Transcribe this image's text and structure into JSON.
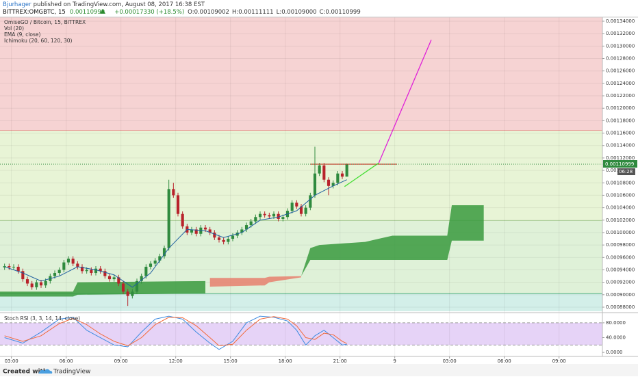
{
  "header": {
    "author": "Bjurhager",
    "published": "published on TradingView.com, August 08, 2017 16:38 EST",
    "symbol": "BITTREX:OMGBTC, 15",
    "last": "0.00110999",
    "change": "+0.00017330 (+18.5%)",
    "quote": [
      "O:0.00109002",
      "H:0.00111111",
      "L:0.00109000",
      "C:0.00110999"
    ]
  },
  "footer": {
    "created": "Created with",
    "brand": "TradingView"
  },
  "chart_data": {
    "type": "candlestick",
    "title": "OmiseGO / Bitcoin, 15, BITTREX",
    "indicators": [
      "Vol (20)",
      "EMA (9, close)",
      "Ichimoku (20, 60, 120, 30)"
    ],
    "up_color": "#2f8a3e",
    "down_color": "#b8232b",
    "x": [
      1,
      2,
      3,
      4,
      5,
      6,
      7,
      8,
      9,
      10,
      11,
      12,
      13,
      14,
      15,
      16,
      17,
      18,
      19,
      20,
      21,
      22,
      23,
      24,
      25,
      26,
      27,
      28,
      29,
      30,
      31,
      32,
      33,
      34,
      35,
      36,
      37,
      38,
      39,
      40,
      41,
      42,
      43,
      44,
      45,
      46,
      47,
      48,
      49,
      50,
      51,
      52,
      53,
      54,
      55,
      56,
      57,
      58,
      59,
      60,
      61,
      62,
      63,
      64,
      65,
      66,
      67,
      68,
      69,
      70,
      71,
      72,
      73,
      74,
      75,
      76
    ],
    "open": [
      0.000944,
      0.000946,
      0.000944,
      0.000945,
      0.000938,
      0.000925,
      0.000918,
      0.000912,
      0.00092,
      0.000915,
      0.000922,
      0.00093,
      0.000935,
      0.00094,
      0.000952,
      0.000958,
      0.00095,
      0.000945,
      0.000938,
      0.00094,
      0.000935,
      0.000942,
      0.000938,
      0.00093,
      0.000925,
      0.000928,
      0.000918,
      0.000905,
      0.000898,
      0.000905,
      0.000922,
      0.00093,
      0.000945,
      0.00095,
      0.000955,
      0.000962,
      0.000975,
      0.00107,
      0.00106,
      0.00103,
      0.00101,
      0.001,
      0.001005,
      0.000998,
      0.001008,
      0.001005,
      0.001,
      0.000992,
      0.000988,
      0.000985,
      0.00099,
      0.000995,
      0.001,
      0.001005,
      0.001012,
      0.001018,
      0.001025,
      0.00103,
      0.001028,
      0.001026,
      0.00103,
      0.001022,
      0.001025,
      0.001035,
      0.001048,
      0.001042,
      0.00103,
      0.00104,
      0.00106,
      0.001095,
      0.001108,
      0.001085,
      0.001075,
      0.00108,
      0.001095,
      0.00109002
    ],
    "high": [
      0.00095,
      0.00095,
      0.000949,
      0.000949,
      0.000942,
      0.000929,
      0.000922,
      0.000924,
      0.000924,
      0.000926,
      0.000934,
      0.000939,
      0.000944,
      0.000956,
      0.000962,
      0.000962,
      0.000954,
      0.000949,
      0.000944,
      0.000944,
      0.000946,
      0.000946,
      0.000942,
      0.000934,
      0.000932,
      0.000932,
      0.000922,
      0.000909,
      0.000909,
      0.000926,
      0.000934,
      0.000949,
      0.000954,
      0.000959,
      0.000966,
      0.000979,
      0.001085,
      0.00108,
      0.001064,
      0.001034,
      0.001014,
      0.001009,
      0.001009,
      0.001012,
      0.001012,
      0.001009,
      0.001004,
      0.000996,
      0.000992,
      0.000994,
      0.000999,
      0.001004,
      0.001009,
      0.001016,
      0.001022,
      0.001029,
      0.001034,
      0.001034,
      0.001032,
      0.001034,
      0.001034,
      0.001029,
      0.001039,
      0.001052,
      0.001052,
      0.001046,
      0.001044,
      0.001064,
      0.001138,
      0.001112,
      0.001112,
      0.001089,
      0.001084,
      0.001099,
      0.001099,
      0.00111111
    ],
    "low": [
      0.00094,
      0.00094,
      0.00094,
      0.000934,
      0.000921,
      0.000914,
      0.000908,
      0.000908,
      0.000911,
      0.000911,
      0.000918,
      0.000926,
      0.000931,
      0.000936,
      0.000948,
      0.000946,
      0.000941,
      0.000934,
      0.000934,
      0.000931,
      0.000931,
      0.000934,
      0.000926,
      0.000921,
      0.000921,
      0.000914,
      0.000901,
      0.000882,
      0.000894,
      0.000901,
      0.000918,
      0.000926,
      0.000941,
      0.000946,
      0.000951,
      0.000958,
      0.000971,
      0.001056,
      0.001026,
      0.001006,
      0.000996,
      0.000996,
      0.000994,
      0.000994,
      0.001001,
      0.000996,
      0.000988,
      0.000984,
      0.000981,
      0.000981,
      0.000986,
      0.000991,
      0.000996,
      0.001001,
      0.001008,
      0.001014,
      0.001021,
      0.001024,
      0.001022,
      0.001022,
      0.001018,
      0.001018,
      0.001021,
      0.001031,
      0.001038,
      0.001026,
      0.001026,
      0.001036,
      0.001056,
      0.001091,
      0.001081,
      0.00106,
      0.001071,
      0.001076,
      0.001086,
      0.00109
    ],
    "close": [
      0.000946,
      0.000944,
      0.000945,
      0.000938,
      0.000925,
      0.000918,
      0.000912,
      0.00092,
      0.000915,
      0.000922,
      0.00093,
      0.000935,
      0.00094,
      0.000952,
      0.000958,
      0.00095,
      0.000945,
      0.000938,
      0.00094,
      0.000935,
      0.000942,
      0.000938,
      0.00093,
      0.000925,
      0.000928,
      0.000918,
      0.000905,
      0.000898,
      0.000905,
      0.000922,
      0.00093,
      0.000945,
      0.00095,
      0.000955,
      0.000962,
      0.000975,
      0.00107,
      0.00106,
      0.00103,
      0.00101,
      0.001,
      0.001005,
      0.000998,
      0.001008,
      0.001005,
      0.001,
      0.000992,
      0.000988,
      0.000985,
      0.00099,
      0.000995,
      0.001,
      0.001005,
      0.001012,
      0.001018,
      0.001025,
      0.00103,
      0.001028,
      0.001026,
      0.00103,
      0.001022,
      0.001025,
      0.001035,
      0.001048,
      0.001042,
      0.00103,
      0.00104,
      0.00106,
      0.001095,
      0.001108,
      0.001085,
      0.001075,
      0.00108,
      0.001095,
      0.00109,
      0.00110999
    ],
    "countdown": "06:28",
    "ema": {
      "color": "#1f5fa0",
      "x": [
        1,
        5,
        9,
        13,
        17,
        21,
        25,
        29,
        33,
        37,
        41,
        45,
        49,
        53,
        57,
        61,
        65,
        69,
        73,
        76
      ],
      "values": [
        0.000945,
        0.000935,
        0.000922,
        0.00093,
        0.000945,
        0.00094,
        0.000932,
        0.000912,
        0.000935,
        0.000975,
        0.001005,
        0.001003,
        0.000992,
        0.001,
        0.00102,
        0.001025,
        0.001035,
        0.00106,
        0.001075,
        0.001085
      ]
    },
    "clouds": [
      {
        "color": "#3a9a3e",
        "x": [
          0,
          16,
          17,
          45
        ],
        "upper": [
          0.000905,
          0.000905,
          0.00092,
          0.000922
        ],
        "lower": [
          0.000897,
          0.000897,
          0.0009,
          0.000902
        ]
      },
      {
        "color": "#e8806e",
        "x": [
          46,
          58,
          59,
          66
        ],
        "upper": [
          0.000927,
          0.000927,
          0.000929,
          0.00093
        ],
        "lower": [
          0.000913,
          0.000915,
          0.00092,
          0.000928
        ]
      },
      {
        "color": "#3a9a3e",
        "x": [
          66,
          68,
          70,
          80,
          83,
          86,
          98,
          99,
          106
        ],
        "upper": [
          0.00093,
          0.000975,
          0.00098,
          0.000985,
          0.00099,
          0.000995,
          0.000995,
          0.001044,
          0.001044
        ],
        "lower": [
          0.00093,
          0.000956,
          0.000956,
          0.000956,
          0.000956,
          0.000956,
          0.000956,
          0.000987,
          0.000987
        ]
      }
    ],
    "zones": [
      {
        "from": 0.001164,
        "color": "#f6d3d3",
        "line": "#e06666"
      },
      {
        "from": 0.001019,
        "color": "#e8f4d6",
        "line": "#6aa84f"
      },
      {
        "from": 0.000902,
        "color": "#dff1d8",
        "line": "#4caf7a"
      }
    ],
    "base_zone_color": "#d3efe9",
    "drawings": [
      {
        "color": "#e0312b",
        "x": [
          68,
          87
        ],
        "y": [
          0.00111,
          0.00111
        ]
      },
      {
        "color": "#44dd33",
        "x": [
          75.5,
          83
        ],
        "y": [
          0.001074,
          0.001112
        ]
      },
      {
        "color": "#e020d8",
        "x": [
          83,
          94.5
        ],
        "y": [
          0.001112,
          0.00131
        ]
      }
    ],
    "xlim": [
      0,
      132
    ],
    "ylim": [
      0.0008734,
      0.0013466
    ],
    "yticks": [
      {
        "value": 0.00088,
        "label": "0.00088000"
      },
      {
        "value": 0.0009,
        "label": "0.00090000"
      },
      {
        "value": 0.00092,
        "label": "0.00092000"
      },
      {
        "value": 0.00094,
        "label": "0.00094000"
      },
      {
        "value": 0.00096,
        "label": "0.00096000"
      },
      {
        "value": 0.00098,
        "label": "0.00098000"
      },
      {
        "value": 0.001,
        "label": "0.00100000"
      },
      {
        "value": 0.00102,
        "label": "0.00102000"
      },
      {
        "value": 0.00104,
        "label": "0.00104000"
      },
      {
        "value": 0.00106,
        "label": "0.00106000"
      },
      {
        "value": 0.00108,
        "label": "0.00108000"
      },
      {
        "value": 0.0011,
        "label": "0.00110000"
      },
      {
        "value": 0.00112,
        "label": "0.00112000"
      },
      {
        "value": 0.00114,
        "label": "0.00114000"
      },
      {
        "value": 0.00116,
        "label": "0.00116000"
      },
      {
        "value": 0.00118,
        "label": "0.00118000"
      },
      {
        "value": 0.0012,
        "label": "0.00120000"
      },
      {
        "value": 0.00122,
        "label": "0.00122000"
      },
      {
        "value": 0.00124,
        "label": "0.00124000"
      },
      {
        "value": 0.00126,
        "label": "0.00126000"
      },
      {
        "value": 0.00128,
        "label": "0.00128000"
      },
      {
        "value": 0.0013,
        "label": "0.00130000"
      },
      {
        "value": 0.00132,
        "label": "0.00132000"
      },
      {
        "value": 0.00134,
        "label": "0.00134000"
      }
    ],
    "xticks": [
      {
        "value": 2.5,
        "label": "03:00"
      },
      {
        "value": 14.5,
        "label": "06:00"
      },
      {
        "value": 26.5,
        "label": "09:00"
      },
      {
        "value": 38.5,
        "label": "12:00"
      },
      {
        "value": 50.5,
        "label": "15:00"
      },
      {
        "value": 62.5,
        "label": "18:00"
      },
      {
        "value": 74.5,
        "label": "21:00"
      },
      {
        "value": 86.5,
        "label": "9"
      },
      {
        "value": 98.5,
        "label": "03:00"
      },
      {
        "value": 110.5,
        "label": "06:00"
      },
      {
        "value": 122.5,
        "label": "09:00"
      }
    ],
    "grid": true,
    "stoch_rsi": {
      "title": "Stoch RSI (3, 3, 14, 14, close)",
      "ylim": [
        -9,
        102
      ],
      "band": [
        20,
        80
      ],
      "band_color": "#e6d3f7",
      "yticks": [
        {
          "value": 80,
          "label": "80.0000"
        },
        {
          "value": 40,
          "label": "40.0000"
        },
        {
          "value": 0,
          "label": "0.0000"
        }
      ],
      "x": [
        1,
        5,
        9,
        13,
        16,
        19,
        22,
        25,
        28,
        31,
        34,
        37,
        40,
        43,
        46,
        48,
        51,
        54,
        57,
        60,
        63,
        65,
        67,
        69,
        71,
        73,
        75,
        76
      ],
      "series": [
        {
          "color": "#3d8be0",
          "values": [
            40,
            25,
            55,
            90,
            95,
            60,
            40,
            20,
            15,
            55,
            90,
            98,
            90,
            55,
            25,
            8,
            30,
            80,
            98,
            95,
            85,
            60,
            20,
            45,
            60,
            40,
            20,
            22
          ]
        },
        {
          "color": "#f26a3a",
          "values": [
            45,
            30,
            45,
            78,
            92,
            75,
            50,
            30,
            18,
            40,
            75,
            95,
            94,
            72,
            40,
            18,
            22,
            60,
            90,
            97,
            90,
            72,
            40,
            35,
            52,
            48,
            30,
            24
          ]
        }
      ]
    }
  }
}
